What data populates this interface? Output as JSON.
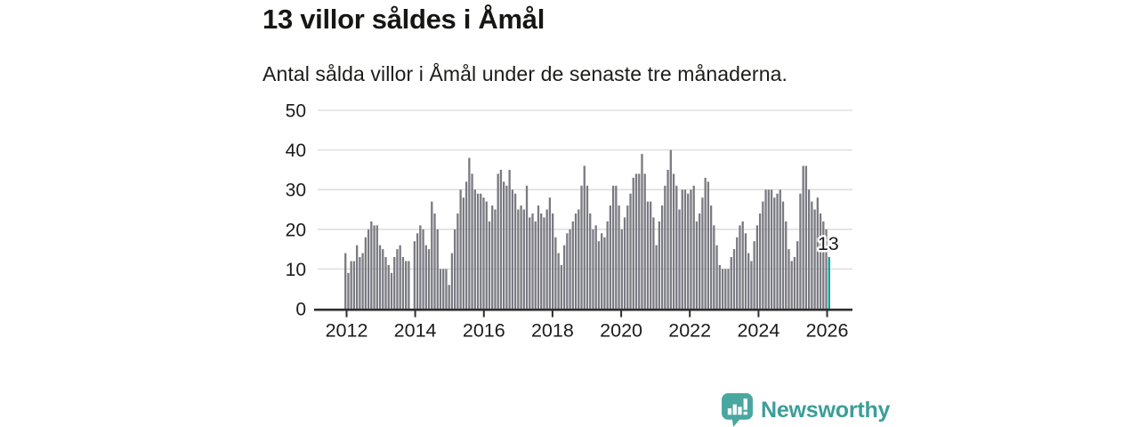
{
  "chart_data": {
    "type": "bar",
    "title": "13 villor såldes i Åmål",
    "subtitle": "Antal sålda villor i Åmål under de senaste tre månaderna.",
    "xlabel": "",
    "ylabel": "",
    "ylim": [
      0,
      50
    ],
    "yticks": [
      0,
      10,
      20,
      30,
      40,
      50
    ],
    "xticks": [
      2012,
      2014,
      2016,
      2018,
      2020,
      2022,
      2024,
      2026
    ],
    "frequency": "monthly",
    "start_year": 2012,
    "grid": true,
    "bar_color": "#7a7a82",
    "highlight_color": "#00a59c",
    "annotation_label": "13",
    "highlight_value": 13,
    "values": [
      14,
      9,
      12,
      12,
      16,
      13,
      14,
      18,
      20,
      22,
      21,
      21,
      16,
      15,
      13,
      11,
      9,
      13,
      15,
      16,
      13,
      12,
      12,
      0,
      17,
      19,
      21,
      20,
      16,
      15,
      27,
      24,
      20,
      10,
      10,
      10,
      6,
      14,
      20,
      24,
      30,
      28,
      32,
      38,
      34,
      30,
      29,
      29,
      28,
      27,
      22,
      26,
      25,
      34,
      35,
      32,
      31,
      35,
      30,
      29,
      25,
      26,
      25,
      31,
      23,
      24,
      22,
      26,
      24,
      23,
      25,
      28,
      24,
      18,
      14,
      11,
      16,
      19,
      20,
      22,
      24,
      25,
      31,
      36,
      31,
      24,
      20,
      21,
      17,
      19,
      18,
      22,
      26,
      31,
      31,
      26,
      20,
      23,
      26,
      29,
      33,
      34,
      34,
      39,
      34,
      27,
      27,
      23,
      16,
      22,
      26,
      31,
      35,
      40,
      34,
      31,
      25,
      30,
      30,
      29,
      30,
      31,
      22,
      24,
      28,
      33,
      32,
      26,
      21,
      16,
      11,
      10,
      10,
      10,
      13,
      15,
      18,
      21,
      22,
      19,
      14,
      12,
      17,
      21,
      24,
      27,
      30,
      30,
      30,
      28,
      29,
      30,
      27,
      22,
      15,
      12,
      13,
      17,
      29,
      36,
      36,
      30,
      27,
      25,
      28,
      24,
      22,
      20,
      13
    ]
  },
  "branding": {
    "name": "Newsworthy",
    "text_color": "#3b9e99",
    "icon_color": "#48a7a1"
  },
  "style": {
    "gridline_color": "#dadada",
    "axis_color": "#2e2e2e",
    "tick_label_color": "#1c1c1c",
    "annotation_color": "#1a1a1a"
  }
}
